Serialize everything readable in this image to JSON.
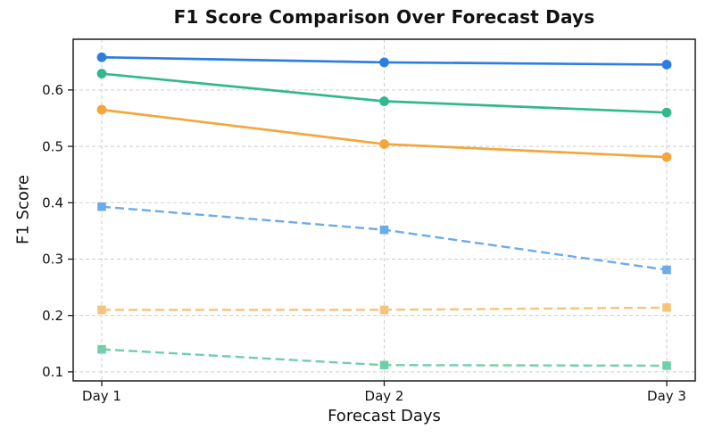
{
  "title": "F1 Score Comparison Over Forecast Days",
  "chart_data": {
    "type": "line",
    "title": "F1 Score Comparison Over Forecast Days",
    "xlabel": "Forecast Days",
    "ylabel": "F1 Score",
    "categories": [
      "Day 1",
      "Day 2",
      "Day 3"
    ],
    "yticks": [
      0.1,
      0.2,
      0.3,
      0.4,
      0.5,
      0.6
    ],
    "ylim": [
      0.084,
      0.69
    ],
    "grid": true,
    "grid_style": "dashed",
    "legend_position": "none",
    "series": [
      {
        "name": "blue-solid",
        "values": [
          0.658,
          0.649,
          0.645
        ],
        "color": "#2e7de0",
        "style": "solid",
        "marker": "circle"
      },
      {
        "name": "green-solid",
        "values": [
          0.629,
          0.58,
          0.56
        ],
        "color": "#30ba8b",
        "style": "solid",
        "marker": "circle"
      },
      {
        "name": "orange-solid",
        "values": [
          0.565,
          0.504,
          0.481
        ],
        "color": "#f4a63d",
        "style": "solid",
        "marker": "circle"
      },
      {
        "name": "blue-dashed",
        "values": [
          0.393,
          0.352,
          0.281
        ],
        "color": "#6babec",
        "style": "dashed",
        "marker": "square"
      },
      {
        "name": "orange-dashed",
        "values": [
          0.21,
          0.21,
          0.214
        ],
        "color": "#f8c479",
        "style": "dashed",
        "marker": "square"
      },
      {
        "name": "green-dashed",
        "values": [
          0.14,
          0.112,
          0.111
        ],
        "color": "#70cfa8",
        "style": "dashed",
        "marker": "square"
      }
    ]
  },
  "style": {
    "grid_color": "#cdcdcd",
    "frame_color": "#1a1a1a",
    "tick_color": "#1a1a1a",
    "background": "#ffffff"
  }
}
